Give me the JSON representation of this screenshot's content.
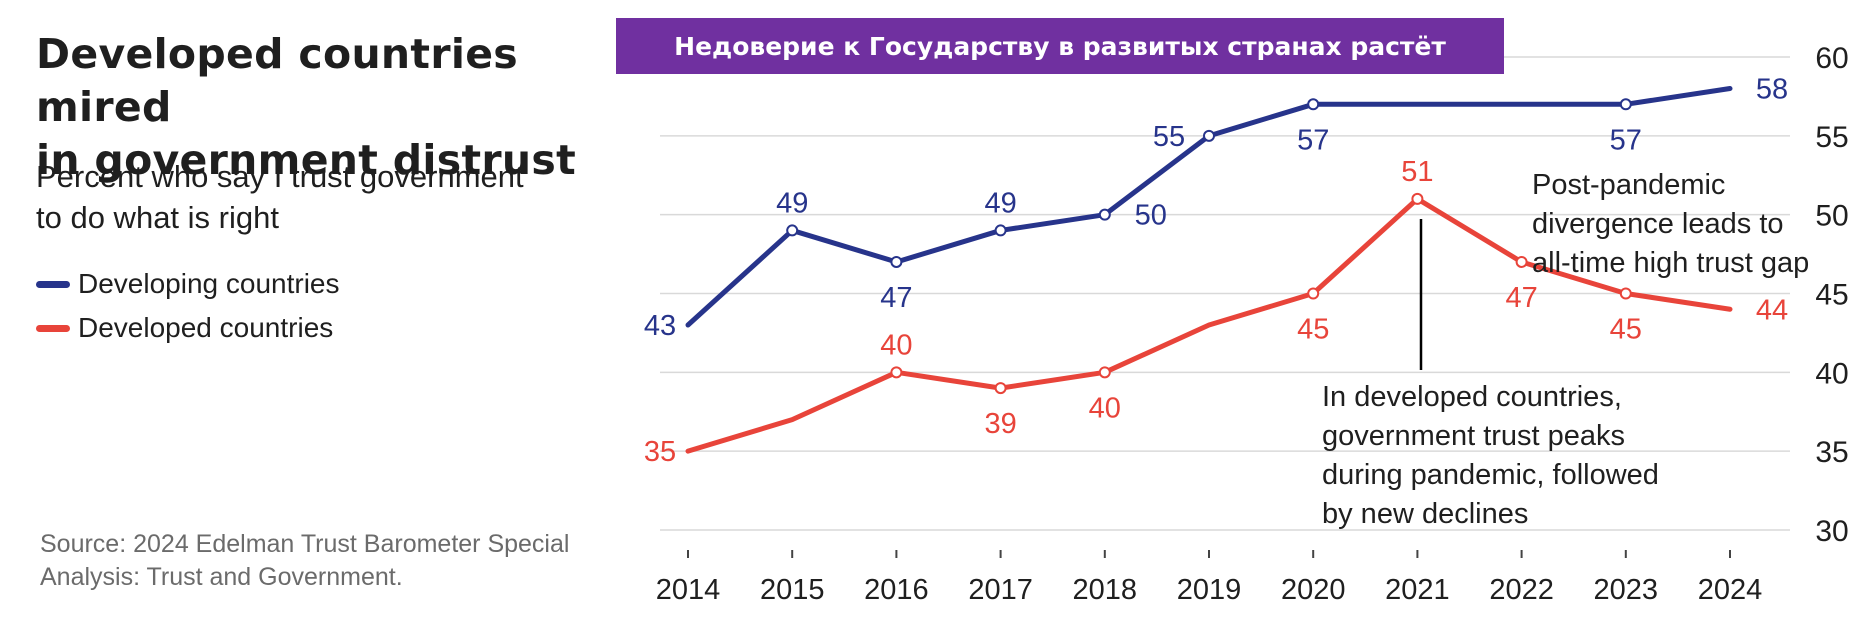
{
  "title_lines": [
    "Developed countries mired",
    "in government distrust"
  ],
  "subtitle_lines": [
    "Percent who say I trust government",
    "to do what is right"
  ],
  "banner": "Недоверие к Государству в развитых странах растёт",
  "source_lines": [
    "Source: 2024 Edelman Trust Barometer Special",
    "Analysis: Trust and Government."
  ],
  "annotations": {
    "post_pandemic": [
      "Post-pandemic",
      "divergence leads to",
      "all-time high trust gap"
    ],
    "developed_peak": [
      "In developed countries,",
      "government trust peaks",
      "during pandemic, followed",
      "by new declines"
    ]
  },
  "colors": {
    "developing": "#27348b",
    "developed": "#e8443a",
    "banner": "#7030a0",
    "grid": "#d9d9d9"
  },
  "chart_data": {
    "type": "line",
    "x": [
      2014,
      2015,
      2016,
      2017,
      2018,
      2019,
      2020,
      2021,
      2022,
      2023,
      2024
    ],
    "ylim": [
      30,
      60
    ],
    "yticks": [
      30,
      35,
      40,
      45,
      50,
      55,
      60
    ],
    "grid": "horizontal",
    "axis_side": "right",
    "series": [
      {
        "name": "Developing countries",
        "values": [
          43,
          49,
          47,
          49,
          50,
          55,
          57,
          57,
          57,
          57,
          58
        ],
        "labels": [
          "43",
          "49",
          "47",
          "49",
          "50",
          "55",
          "57",
          "",
          "",
          "57",
          "58"
        ],
        "markers": [
          false,
          true,
          true,
          true,
          true,
          true,
          true,
          false,
          false,
          true,
          false
        ]
      },
      {
        "name": "Developed countries",
        "values": [
          35,
          37,
          40,
          39,
          40,
          43,
          45,
          51,
          47,
          45,
          44
        ],
        "labels": [
          "35",
          "",
          "40",
          "39",
          "40",
          "",
          "45",
          "51",
          "47",
          "45",
          "44"
        ],
        "markers": [
          false,
          false,
          true,
          true,
          true,
          false,
          true,
          true,
          true,
          true,
          false
        ]
      }
    ]
  }
}
